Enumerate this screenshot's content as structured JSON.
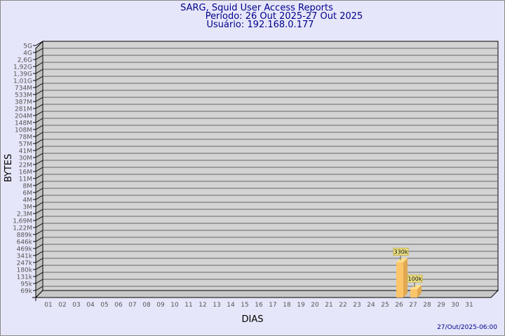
{
  "chart_data": {
    "type": "bar",
    "title": "SARG, Squid User Access Reports",
    "subtitle1": "Período: 26 Out 2025-27 Out 2025",
    "subtitle2": "Usuário: 192.168.0.177",
    "xlabel": "DIAS",
    "ylabel": "BYTES",
    "footer": "27/Out/2025-06:00",
    "yscale": "log",
    "grid": true,
    "yticks": [
      "5G",
      "4G",
      "2,6G",
      "1,92G",
      "1,39G",
      "1,01G",
      "734M",
      "533M",
      "387M",
      "281M",
      "204M",
      "148M",
      "108M",
      "78M",
      "57M",
      "41M",
      "30M",
      "22M",
      "16M",
      "11M",
      "8M",
      "6M",
      "4M",
      "3M",
      "2,3M",
      "1,69M",
      "1,22M",
      "889k",
      "646k",
      "469k",
      "341k",
      "247k",
      "180k",
      "131k",
      "95k",
      "69k"
    ],
    "categories": [
      "01",
      "02",
      "03",
      "04",
      "05",
      "06",
      "07",
      "08",
      "09",
      "10",
      "11",
      "12",
      "13",
      "14",
      "15",
      "16",
      "17",
      "18",
      "19",
      "20",
      "21",
      "22",
      "23",
      "24",
      "25",
      "26",
      "27",
      "28",
      "29",
      "30",
      "31"
    ],
    "bars": [
      {
        "category": "26",
        "value": 330000,
        "label": "330k"
      },
      {
        "category": "27",
        "value": 100000,
        "label": "100k"
      }
    ],
    "colors": {
      "background": "#e6e6fa",
      "wall": "#d3d3d3",
      "bar": "#fcc56a",
      "text": "#00008b",
      "label_box": "#f0e68c"
    }
  }
}
